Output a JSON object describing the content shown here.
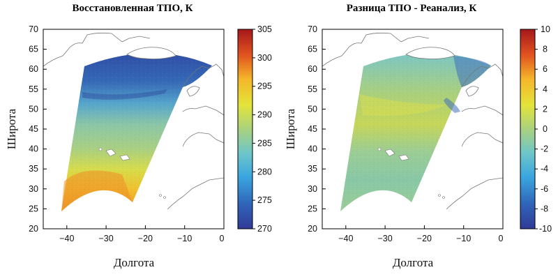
{
  "chart_data": [
    {
      "type": "heatmap",
      "title": "Восстановленная ТПО, К",
      "xlabel": "Долгота",
      "ylabel": "Широта",
      "xlim": [
        -46,
        0
      ],
      "ylim": [
        20,
        70
      ],
      "xticks": [
        "−40",
        "−30",
        "−20",
        "−10",
        "0"
      ],
      "yticks": [
        "20",
        "25",
        "30",
        "35",
        "40",
        "45",
        "50",
        "55",
        "60",
        "65",
        "70"
      ],
      "colorbar": {
        "range": [
          270,
          305
        ],
        "ticks": [
          "270",
          "275",
          "280",
          "285",
          "290",
          "295",
          "300",
          "305"
        ],
        "colormap": "jet"
      },
      "field": [
        {
          "lat": 62,
          "value": 276
        },
        {
          "lat": 57,
          "value": 279
        },
        {
          "lat": 52,
          "value": 283
        },
        {
          "lat": 47,
          "value": 287
        },
        {
          "lat": 42,
          "value": 288
        },
        {
          "lat": 37,
          "value": 291
        },
        {
          "lat": 32,
          "value": 294
        },
        {
          "lat": 27,
          "value": 297
        }
      ]
    },
    {
      "type": "heatmap",
      "title": "Разница ТПО - Реанализ, К",
      "xlabel": "Долгота",
      "ylabel": "Широта",
      "xlim": [
        -46,
        0
      ],
      "ylim": [
        20,
        70
      ],
      "xticks": [
        "−40",
        "−30",
        "−20",
        "−10",
        "0"
      ],
      "yticks": [
        "20",
        "25",
        "30",
        "35",
        "40",
        "45",
        "50",
        "55",
        "60",
        "65",
        "70"
      ],
      "colorbar": {
        "range": [
          -10,
          10
        ],
        "ticks": [
          "-10",
          "-8",
          "-6",
          "-4",
          "-2",
          "0",
          "2",
          "4",
          "6",
          "8",
          "10"
        ],
        "colormap": "jet"
      },
      "field": [
        {
          "lat": 62,
          "value": -3
        },
        {
          "lat": 57,
          "value": -1
        },
        {
          "lat": 52,
          "value": 1
        },
        {
          "lat": 47,
          "value": 1.5
        },
        {
          "lat": 42,
          "value": 0
        },
        {
          "lat": 37,
          "value": -1
        },
        {
          "lat": 32,
          "value": -1.5
        },
        {
          "lat": 27,
          "value": -1
        }
      ]
    }
  ]
}
